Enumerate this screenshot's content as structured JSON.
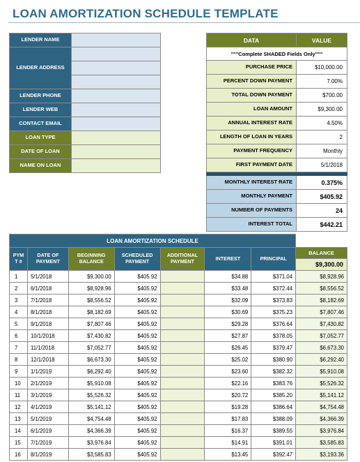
{
  "title": "LOAN AMORTIZATION SCHEDULE TEMPLATE",
  "lender": {
    "name_label": "LENDER NAME",
    "address_label": "LENDER ADDRESS",
    "phone_label": "LENDER PHONE",
    "web_label": "LENDER WEB",
    "contact_label": "CONTACT EMAIL",
    "loan_type_label": "LOAN TYPE",
    "date_label": "DATE OF LOAN",
    "name_on_loan_label": "NAME ON LOAN"
  },
  "data": {
    "header_data": "DATA",
    "header_value": "VALUE",
    "note": "\"\"\"Complete SHADED Fields Only\"\"\"",
    "purchase_price_label": "PURCHASE PRICE",
    "purchase_price": "$10,000.00",
    "percent_down_label": "PERCENT DOWN PAYMENT",
    "percent_down": "7.00%",
    "total_down_label": "TOTAL DOWN PAYMENT",
    "total_down": "$700.00",
    "loan_amount_label": "LOAN AMOUNT",
    "loan_amount": "$9,300.00",
    "annual_rate_label": "ANNUAL INTEREST RATE",
    "annual_rate": "4.50%",
    "length_label": "LENGTH OF LOAN IN YEARS",
    "length": "2",
    "frequency_label": "PAYMENT FREQUENCY",
    "frequency": "Monthly",
    "first_date_label": "FIRST PAYMENT DATE",
    "first_date": "5/1/2018",
    "monthly_rate_label": "MONTHLY INTEREST RATE",
    "monthly_rate": "0.375%",
    "monthly_payment_label": "MONTHLY PAYMENT",
    "monthly_payment": "$405.92",
    "num_payments_label": "NUMBER OF PAYMENTS",
    "num_payments": "24",
    "interest_total_label": "INTEREST TOTAL",
    "interest_total": "$442.21"
  },
  "schedule": {
    "title": "LOAN AMORTIZATION SCHEDULE",
    "col_pymt": "PYM T #",
    "col_date": "DATE OF PAYMENT",
    "col_begin": "BEGINNING BALANCE",
    "col_sched": "SCHEDULED PAYMENT",
    "col_additional": "ADDITIONAL PAYMENT",
    "col_interest": "INTEREST",
    "col_principal": "PRINCIPAL",
    "col_balance": "BALANCE",
    "starting_balance": "$9,300.00",
    "rows": [
      {
        "n": "1",
        "date": "5/1/2018",
        "begin": "$9,300.00",
        "sched": "$405.92",
        "add": "",
        "interest": "$34.88",
        "principal": "$371.04",
        "balance": "$8,928.96"
      },
      {
        "n": "2",
        "date": "6/1/2018",
        "begin": "$8,928.96",
        "sched": "$405.92",
        "add": "",
        "interest": "$33.48",
        "principal": "$372.44",
        "balance": "$8,556.52"
      },
      {
        "n": "3",
        "date": "7/1/2018",
        "begin": "$8,556.52",
        "sched": "$405.92",
        "add": "",
        "interest": "$32.09",
        "principal": "$373.83",
        "balance": "$8,182.69"
      },
      {
        "n": "4",
        "date": "8/1/2018",
        "begin": "$8,182.69",
        "sched": "$405.92",
        "add": "",
        "interest": "$30.69",
        "principal": "$375.23",
        "balance": "$7,807.46"
      },
      {
        "n": "5",
        "date": "9/1/2018",
        "begin": "$7,807.46",
        "sched": "$405.92",
        "add": "",
        "interest": "$29.28",
        "principal": "$376.64",
        "balance": "$7,430.82"
      },
      {
        "n": "6",
        "date": "10/1/2018",
        "begin": "$7,430.82",
        "sched": "$405.92",
        "add": "",
        "interest": "$27.87",
        "principal": "$378.05",
        "balance": "$7,052.77"
      },
      {
        "n": "7",
        "date": "11/1/2018",
        "begin": "$7,052.77",
        "sched": "$405.92",
        "add": "",
        "interest": "$26.45",
        "principal": "$379.47",
        "balance": "$6,673.30"
      },
      {
        "n": "8",
        "date": "12/1/2018",
        "begin": "$6,673.30",
        "sched": "$405.92",
        "add": "",
        "interest": "$25.02",
        "principal": "$380.90",
        "balance": "$6,292.40"
      },
      {
        "n": "9",
        "date": "1/1/2019",
        "begin": "$6,292.40",
        "sched": "$405.92",
        "add": "",
        "interest": "$23.60",
        "principal": "$382.32",
        "balance": "$5,910.08"
      },
      {
        "n": "10",
        "date": "2/1/2019",
        "begin": "$5,910.08",
        "sched": "$405.92",
        "add": "",
        "interest": "$22.16",
        "principal": "$383.76",
        "balance": "$5,526.32"
      },
      {
        "n": "11",
        "date": "3/1/2019",
        "begin": "$5,526.32",
        "sched": "$405.92",
        "add": "",
        "interest": "$20.72",
        "principal": "$385.20",
        "balance": "$5,141.12"
      },
      {
        "n": "12",
        "date": "4/1/2019",
        "begin": "$5,141.12",
        "sched": "$405.92",
        "add": "",
        "interest": "$19.28",
        "principal": "$386.64",
        "balance": "$4,754.48"
      },
      {
        "n": "13",
        "date": "5/1/2019",
        "begin": "$4,754.48",
        "sched": "$405.92",
        "add": "",
        "interest": "$17.83",
        "principal": "$388.09",
        "balance": "$4,366.39"
      },
      {
        "n": "14",
        "date": "6/1/2019",
        "begin": "$4,366.39",
        "sched": "$405.92",
        "add": "",
        "interest": "$16.37",
        "principal": "$389.55",
        "balance": "$3,976.84"
      },
      {
        "n": "15",
        "date": "7/1/2019",
        "begin": "$3,976.84",
        "sched": "$405.92",
        "add": "",
        "interest": "$14.91",
        "principal": "$391.01",
        "balance": "$3,585.83"
      },
      {
        "n": "16",
        "date": "8/1/2019",
        "begin": "$3,585.83",
        "sched": "$405.92",
        "add": "",
        "interest": "$13.45",
        "principal": "$392.47",
        "balance": "$3,193.36"
      }
    ]
  }
}
